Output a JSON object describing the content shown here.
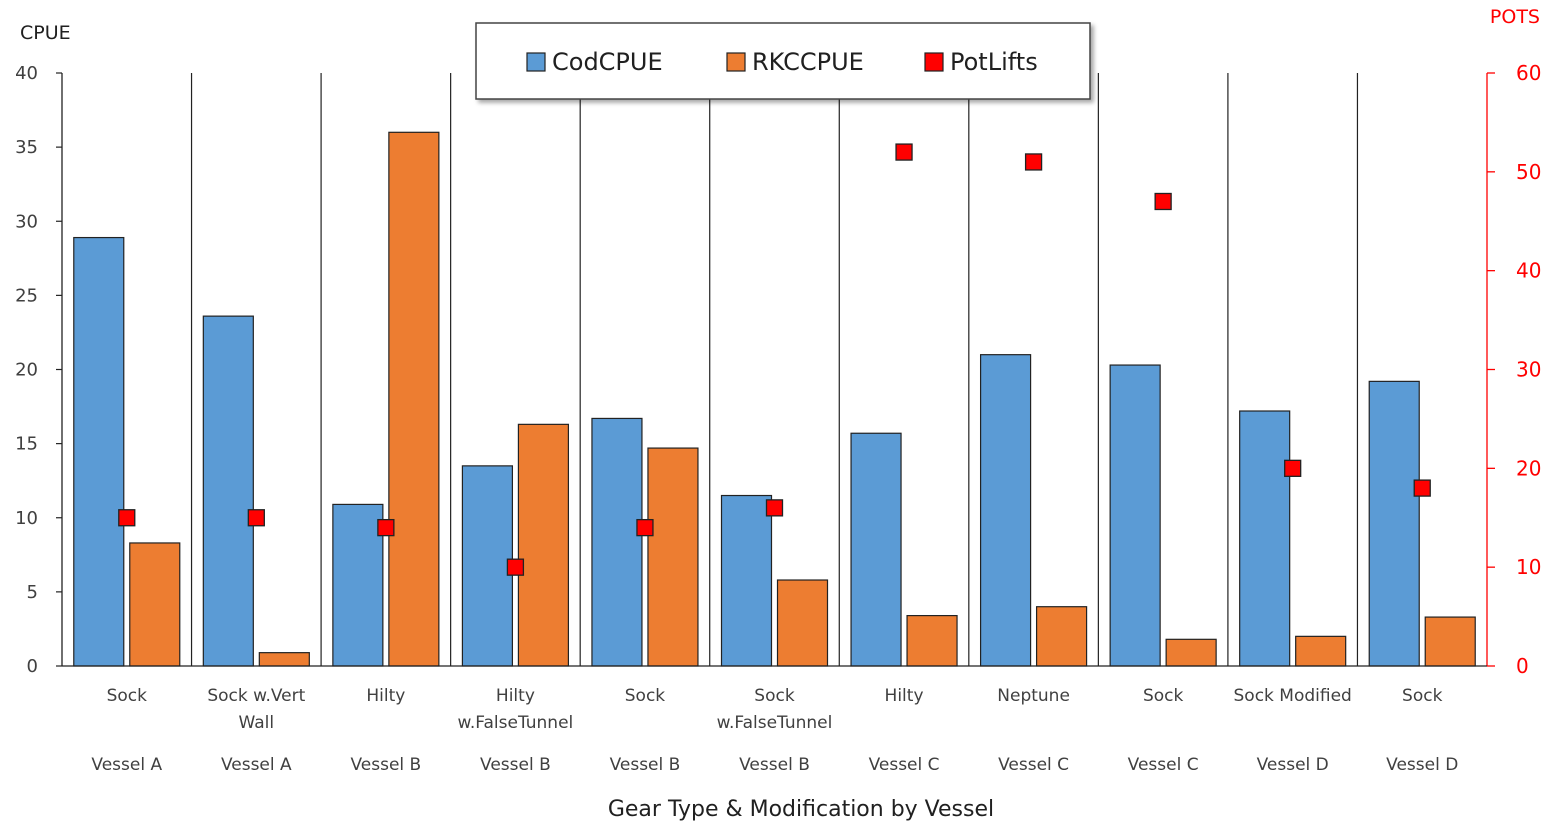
{
  "chart_data": {
    "type": "bar",
    "title": "",
    "xlabel": "Gear Type & Modification by Vessel",
    "ylabel": "CPUE",
    "y2label": "POTS",
    "ylim": [
      0,
      40
    ],
    "y2lim": [
      0,
      60
    ],
    "yticks": [
      0,
      5,
      10,
      15,
      20,
      25,
      30,
      35,
      40
    ],
    "y2ticks": [
      0,
      10,
      20,
      30,
      40,
      50,
      60
    ],
    "grid": false,
    "legend_position": "top",
    "categories": [
      {
        "gear": [
          "Sock"
        ],
        "vessel": "Vessel A"
      },
      {
        "gear": [
          "Sock w.Vert",
          "Wall"
        ],
        "vessel": "Vessel A"
      },
      {
        "gear": [
          "Hilty"
        ],
        "vessel": "Vessel B"
      },
      {
        "gear": [
          "Hilty",
          "w.FalseTunnel"
        ],
        "vessel": "Vessel B"
      },
      {
        "gear": [
          "Sock"
        ],
        "vessel": "Vessel B"
      },
      {
        "gear": [
          "Sock",
          "w.FalseTunnel"
        ],
        "vessel": "Vessel B"
      },
      {
        "gear": [
          "Hilty"
        ],
        "vessel": "Vessel C"
      },
      {
        "gear": [
          "Neptune"
        ],
        "vessel": "Vessel C"
      },
      {
        "gear": [
          "Sock"
        ],
        "vessel": "Vessel C"
      },
      {
        "gear": [
          "Sock Modified"
        ],
        "vessel": "Vessel D"
      },
      {
        "gear": [
          "Sock"
        ],
        "vessel": "Vessel D"
      }
    ],
    "series": [
      {
        "name": "CodCPUE",
        "type": "bar",
        "axis": "left",
        "color": "#5b9bd5",
        "values": [
          28.9,
          23.6,
          10.9,
          13.5,
          16.7,
          11.5,
          15.7,
          21.0,
          20.3,
          17.2,
          19.2
        ]
      },
      {
        "name": "RKCCPUE",
        "type": "bar",
        "axis": "left",
        "color": "#ed7d31",
        "values": [
          8.3,
          0.9,
          36.0,
          16.3,
          14.7,
          5.8,
          3.4,
          4.0,
          1.8,
          2.0,
          3.3
        ]
      },
      {
        "name": "PotLifts",
        "type": "marker",
        "axis": "right",
        "color": "#ff0000",
        "values": [
          15,
          15,
          14,
          10,
          14,
          16,
          52,
          51,
          47,
          20,
          18
        ]
      }
    ]
  }
}
